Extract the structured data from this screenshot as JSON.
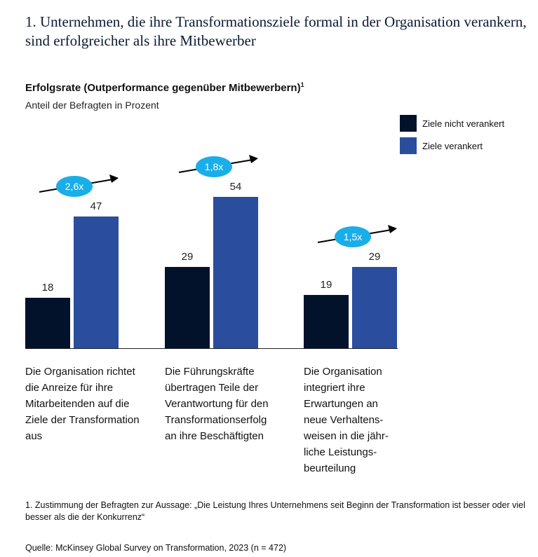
{
  "title": "1. Unternehmen, die ihre Transformationsziele formal in der Organisation verankern, sind erfolgreicher als  ihre Mitbewerber",
  "chart_data": {
    "type": "bar",
    "title": "Erfolgsrate (Outperformance gegenüber Mitbewerbern)",
    "title_footnote": "1",
    "subtitle": "Anteil der Befragten in Prozent",
    "categories": [
      "Die Organisation richtet die Anreize für ihre Mitarbeitenden auf die Ziele der Transformation aus",
      "Die Führungskräfte übertragen Teile der Verantwortung für den Transformationserfolg an ihre Beschäftigten",
      "Die Organisation integriert ihre Erwartungen an neue Verhaltens-weisen in die jähr-liche Leistungs-beurteilung"
    ],
    "series": [
      {
        "name": "Ziele nicht verankert",
        "color": "#03122b",
        "values": [
          18,
          29,
          19
        ]
      },
      {
        "name": "Ziele verankert",
        "color": "#2a4d9e",
        "values": [
          47,
          54,
          29
        ]
      }
    ],
    "multipliers": [
      "2,6x",
      "1,8x",
      "1,5x"
    ],
    "multiplier_color": "#1aaee8",
    "ylim": [
      0,
      54
    ],
    "legend": "top-right"
  },
  "footnote": "1. Zustimmung der Befragten zur Aussage: „Die Leistung Ihres Unternehmens seit Beginn der Transformation ist besser oder viel besser als die der Konkurrenz“",
  "source": "Quelle: McKinsey Global Survey on Transformation, 2023 (n = 472)"
}
